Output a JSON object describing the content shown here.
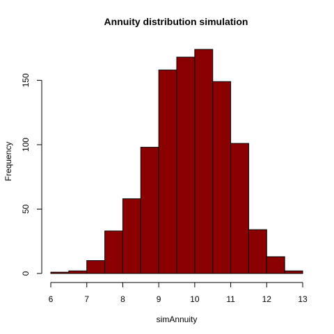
{
  "chart_data": {
    "type": "bar",
    "subtype": "histogram",
    "title": "Annuity distribution simulation",
    "xlabel": "simAnnuity",
    "ylabel": "Frequency",
    "bins": [
      {
        "x0": 6.0,
        "x1": 6.5,
        "count": 1
      },
      {
        "x0": 6.5,
        "x1": 7.0,
        "count": 2
      },
      {
        "x0": 7.0,
        "x1": 7.5,
        "count": 10
      },
      {
        "x0": 7.5,
        "x1": 8.0,
        "count": 33
      },
      {
        "x0": 8.0,
        "x1": 8.5,
        "count": 58
      },
      {
        "x0": 8.5,
        "x1": 9.0,
        "count": 98
      },
      {
        "x0": 9.0,
        "x1": 9.5,
        "count": 158
      },
      {
        "x0": 9.5,
        "x1": 10.0,
        "count": 168
      },
      {
        "x0": 10.0,
        "x1": 10.5,
        "count": 174
      },
      {
        "x0": 10.5,
        "x1": 11.0,
        "count": 149
      },
      {
        "x0": 11.0,
        "x1": 11.5,
        "count": 101
      },
      {
        "x0": 11.5,
        "x1": 12.0,
        "count": 34
      },
      {
        "x0": 12.0,
        "x1": 12.5,
        "count": 13
      },
      {
        "x0": 12.5,
        "x1": 13.0,
        "count": 2
      }
    ],
    "xlim": [
      6,
      13
    ],
    "ylim": [
      0,
      174
    ],
    "xticks": [
      "6",
      "7",
      "8",
      "9",
      "10",
      "11",
      "12",
      "13"
    ],
    "yticks": [
      "0",
      "50",
      "100",
      "150"
    ],
    "grid": false,
    "legend": "none",
    "colors": {
      "bar_fill": "#8B0000",
      "bar_stroke": "#000000",
      "axis": "#000000"
    }
  }
}
